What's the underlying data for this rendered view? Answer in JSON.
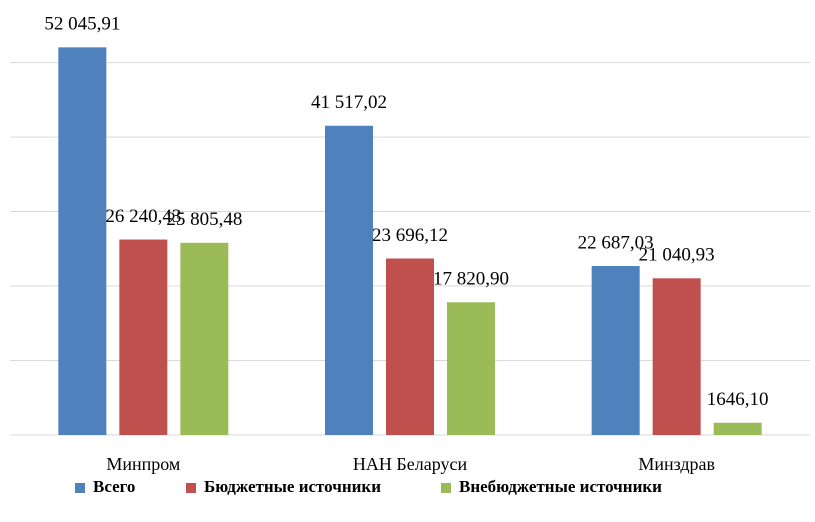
{
  "chart_data": {
    "type": "bar",
    "categories": [
      "Минпром",
      "НАН Беларуси",
      "Минздрав"
    ],
    "series": [
      {
        "name": "Всего",
        "color": "#4f81bd",
        "values": [
          52045.91,
          41517.02,
          22687.03
        ],
        "value_labels": [
          "52 045,91",
          "41 517,02",
          "22 687,03"
        ]
      },
      {
        "name": "Бюджетные источники",
        "color": "#c0504d",
        "values": [
          26240.43,
          23696.12,
          21040.93
        ],
        "value_labels": [
          "26 240,43",
          "23 696,12",
          "21 040,93"
        ]
      },
      {
        "name": "Внебюджетные источники",
        "color": "#9bbb59",
        "values": [
          25805.48,
          17820.9,
          1646.1
        ],
        "value_labels": [
          "25 805,48",
          "17 820,90",
          "1646,10"
        ]
      }
    ],
    "ylim": [
      0,
      58000
    ],
    "yticks": [
      0,
      10000,
      20000,
      30000,
      40000,
      50000
    ],
    "grid": true,
    "legend": "bottom"
  }
}
